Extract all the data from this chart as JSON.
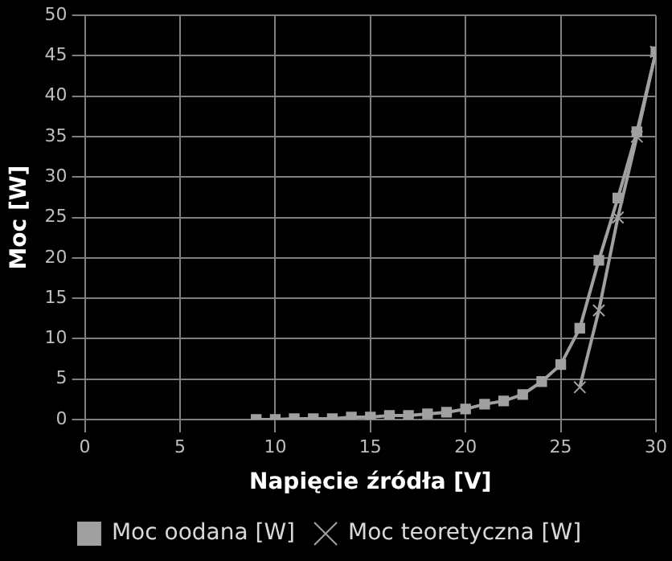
{
  "chart_data": {
    "type": "line",
    "xlabel": "Napięcie źródła [V]",
    "ylabel": "Moc [W]",
    "xlim": [
      0,
      30
    ],
    "xticks": [
      0,
      5,
      10,
      15,
      20,
      25,
      30
    ],
    "ylim": [
      0,
      50
    ],
    "yticks": [
      0,
      5,
      10,
      15,
      20,
      25,
      30,
      35,
      40,
      45,
      50
    ],
    "grid": true,
    "legend": "bottom",
    "series": [
      {
        "name": "Moc oodana [W]",
        "color": "#a0a0a0",
        "marker": "square",
        "x": [
          9,
          10,
          11,
          12,
          13,
          14,
          15,
          16,
          17,
          18,
          19,
          20,
          21,
          22,
          23,
          24,
          25,
          26,
          27,
          28,
          29,
          30
        ],
        "values": [
          0,
          0,
          0.1,
          0.1,
          0.1,
          0.3,
          0.3,
          0.5,
          0.5,
          0.7,
          0.9,
          1.3,
          1.9,
          2.3,
          3.1,
          4.7,
          6.8,
          11.3,
          19.7,
          27.4,
          35.6,
          45.5
        ]
      },
      {
        "name": "Moc teoretyczna [W]",
        "color": "#a0a0a0",
        "marker": "cross",
        "x": [
          26,
          27,
          28,
          29,
          30
        ],
        "values": [
          4,
          13.5,
          25,
          35,
          45.5
        ]
      }
    ]
  }
}
